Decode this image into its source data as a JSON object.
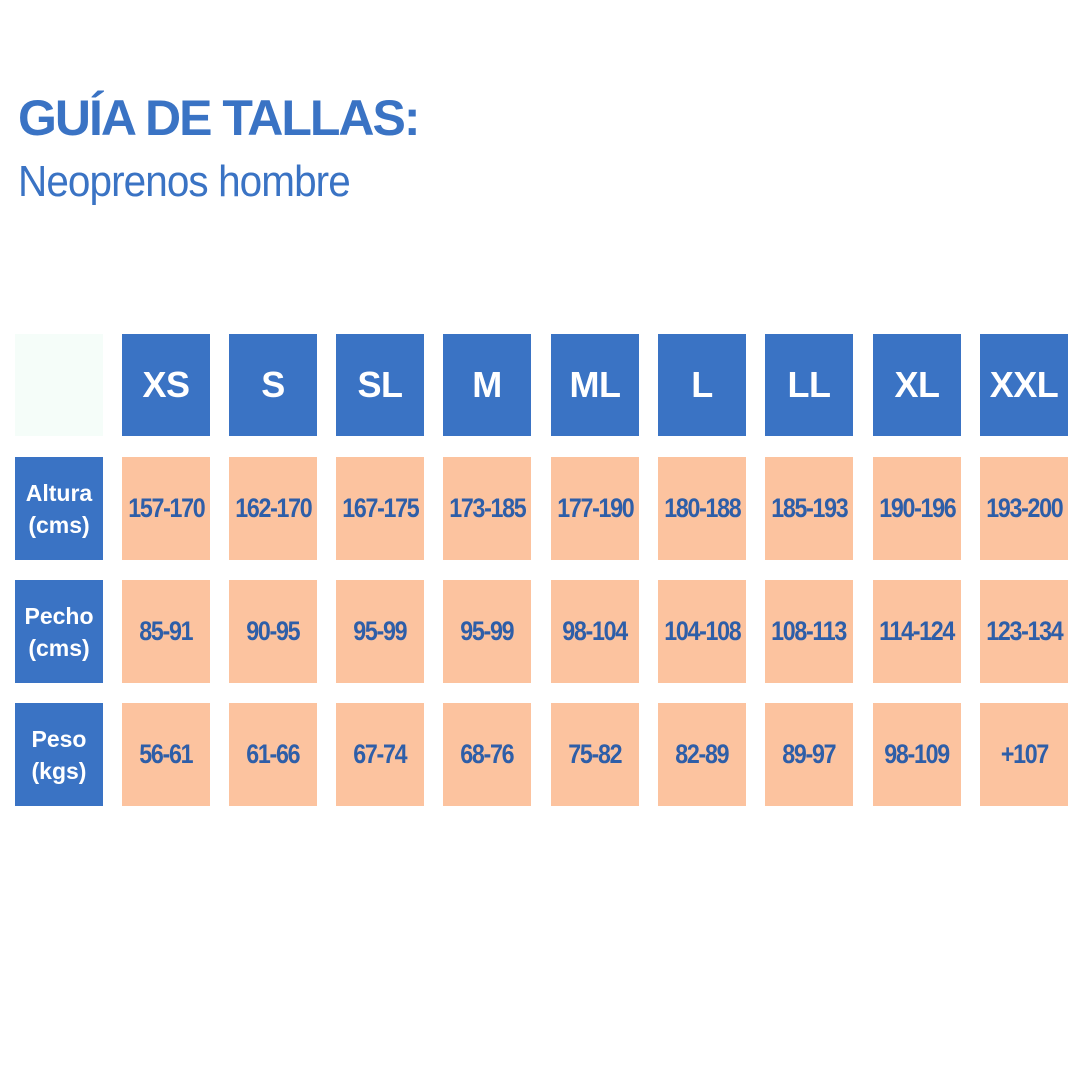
{
  "title": "GUÍA DE TALLAS:",
  "subtitle": "Neoprenos hombre",
  "colors": {
    "header_blue": "#3a73c4",
    "cell_peach": "#fcc39f",
    "value_text": "#2e5ea8",
    "corner": "#f5fdf9"
  },
  "table": {
    "sizes": [
      "XS",
      "S",
      "SL",
      "M",
      "ML",
      "L",
      "LL",
      "XL",
      "XXL"
    ],
    "rows": [
      {
        "label_line1": "Altura",
        "label_line2": "(cms)",
        "values": [
          "157-170",
          "162-170",
          "167-175",
          "173-185",
          "177-190",
          "180-188",
          "185-193",
          "190-196",
          "193-200"
        ]
      },
      {
        "label_line1": "Pecho",
        "label_line2": "(cms)",
        "values": [
          "85-91",
          "90-95",
          "95-99",
          "95-99",
          "98-104",
          "104-108",
          "108-113",
          "114-124",
          "123-134"
        ]
      },
      {
        "label_line1": "Peso",
        "label_line2": "(kgs)",
        "values": [
          "56-61",
          "61-66",
          "67-74",
          "68-76",
          "75-82",
          "82-89",
          "89-97",
          "98-109",
          "+107"
        ]
      }
    ]
  }
}
